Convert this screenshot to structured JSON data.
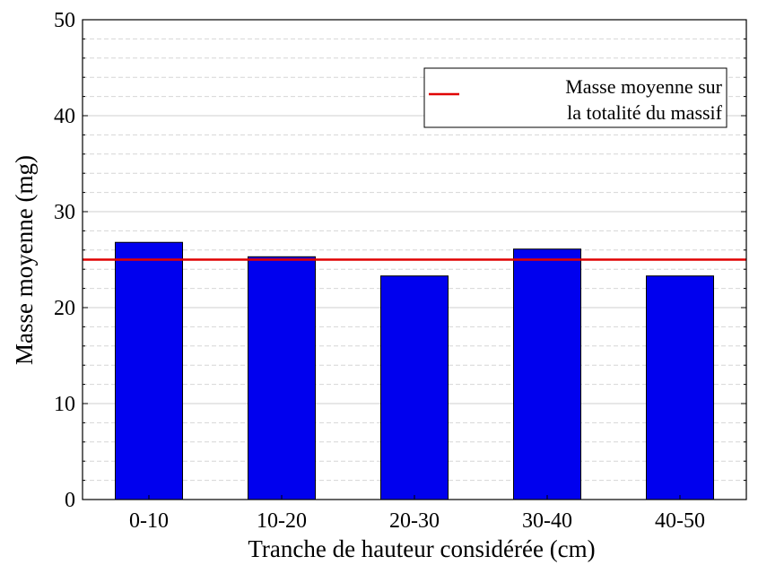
{
  "chart_data": {
    "type": "bar",
    "categories": [
      "0-10",
      "10-20",
      "20-30",
      "30-40",
      "40-50"
    ],
    "values": [
      26.8,
      25.3,
      23.3,
      26.1,
      23.3
    ],
    "reference_line": {
      "value": 25.0,
      "color": "#e00000"
    },
    "xlabel": "Tranche de hauteur considérée (cm)",
    "ylabel": "Masse moyenne (mg)",
    "ylim": [
      0,
      50
    ],
    "yticks": [
      "0",
      "10",
      "20",
      "30",
      "40",
      "50"
    ],
    "grid": {
      "major": true,
      "minor": true
    },
    "legend": {
      "placement": "top-right",
      "line1": "Masse moyenne sur",
      "line2": "la totalité du massif"
    },
    "colors": {
      "bar": "#0000ee",
      "bar_edge": "#000000",
      "line": "#e00000",
      "grid_major": "#cfcfcf",
      "grid_minor": "#d6d6d6"
    }
  }
}
